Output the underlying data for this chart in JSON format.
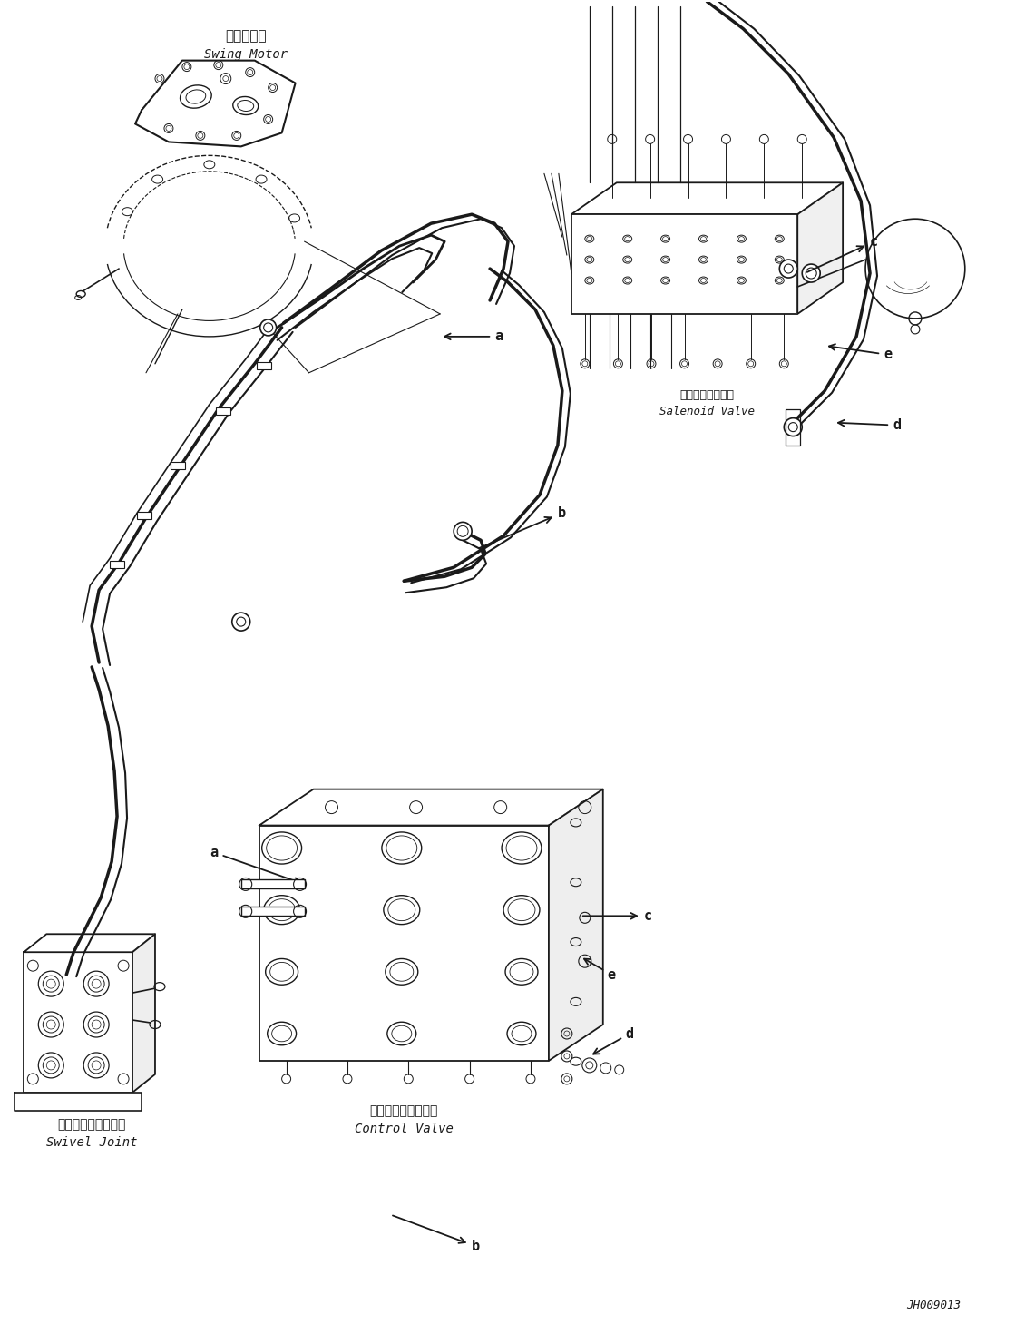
{
  "fig_width": 11.41,
  "fig_height": 14.59,
  "dpi": 100,
  "bg_color": "#ffffff",
  "line_color": "#1a1a1a",
  "line_width": 1.0,
  "labels": {
    "swing_motor_jp": "旋回モータ",
    "swing_motor_en": "Swing Motor",
    "swivel_joint_jp": "スイベルジョイント",
    "swivel_joint_en": "Swivel Joint",
    "control_valve_jp": "コントロールバルブ",
    "control_valve_en": "Control Valve",
    "solenoid_valve_jp": "ソレノイドバルブ",
    "solenoid_valve_en": "Salenoid Valve",
    "diagram_id": "JH009013"
  }
}
